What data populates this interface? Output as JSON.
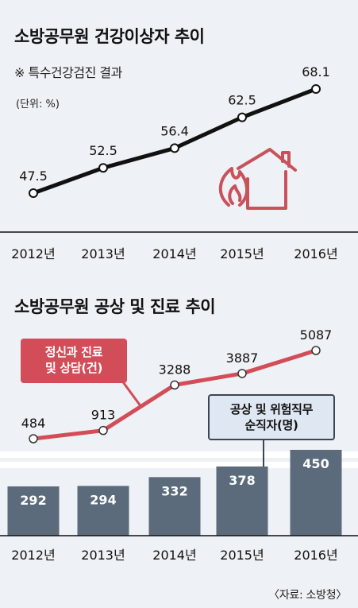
{
  "charts": {
    "top": {
      "title": "소방공무원 건강이상자 추이",
      "subtitle": "※ 특수건강검진 결과",
      "unit_label": "(단위: %)"
    },
    "bottom": {
      "title": "소방공무원 공상 및 진료 추이",
      "line_callout_line1": "정신과 진료",
      "line_callout_line2": "및 상담(건)",
      "bar_callout_line1": "공상 및 위험직무",
      "bar_callout_line2": "순직자(명)"
    }
  },
  "source": "〈자료: 소방청〉",
  "colors": {
    "top_line": "#111111",
    "bottom_line": "#d24d58",
    "bar": "#5b6b7b",
    "house_icon": "#c9515a"
  },
  "icons": [
    "fire-house-icon"
  ],
  "chart_data": [
    {
      "type": "line",
      "title": "소방공무원 건강이상자 추이",
      "ylabel": "(단위: %)",
      "categories": [
        "2012년",
        "2013년",
        "2014년",
        "2015년",
        "2016년"
      ],
      "values": [
        47.5,
        52.5,
        56.4,
        62.5,
        68.1
      ],
      "value_labels": [
        "47.5",
        "52.5",
        "56.4",
        "62.5",
        "68.1"
      ],
      "ylim": [
        44,
        70
      ],
      "grid": false
    },
    {
      "type": "bar",
      "title": "소방공무원 공상 및 진료 추이",
      "categories": [
        "2012년",
        "2013년",
        "2014년",
        "2015년",
        "2016년"
      ],
      "series": [
        {
          "name": "정신과 진료 및 상담(건)",
          "type": "line",
          "values": [
            484,
            913,
            3288,
            3887,
            5087
          ],
          "value_labels": [
            "484",
            "913",
            "3288",
            "3887",
            "5087"
          ]
        },
        {
          "name": "공상 및 위험직무 순직자(명)",
          "type": "bar",
          "values": [
            292,
            294,
            332,
            378,
            450
          ],
          "value_labels": [
            "292",
            "294",
            "332",
            "378",
            "450"
          ]
        }
      ],
      "grid": false
    }
  ]
}
